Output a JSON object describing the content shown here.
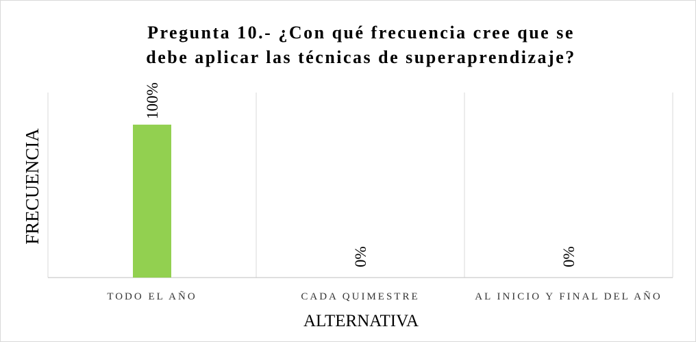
{
  "chart_data": {
    "type": "bar",
    "title": [
      "Pregunta 10.- ¿Con qué frecuencia cree que se",
      "debe aplicar las técnicas de superaprendizaje?"
    ],
    "x_label": "ALTERNATIVA",
    "y_label": "FRECUENCIA",
    "categories": [
      "TODO EL AÑO",
      "CADA QUIMESTRE",
      "AL INICIO Y FINAL DEL AÑO"
    ],
    "values": [
      100,
      0,
      0
    ],
    "value_labels": [
      "100%",
      "0%",
      "0%"
    ],
    "color": "#92d050",
    "ylim": [
      0,
      121
    ]
  }
}
